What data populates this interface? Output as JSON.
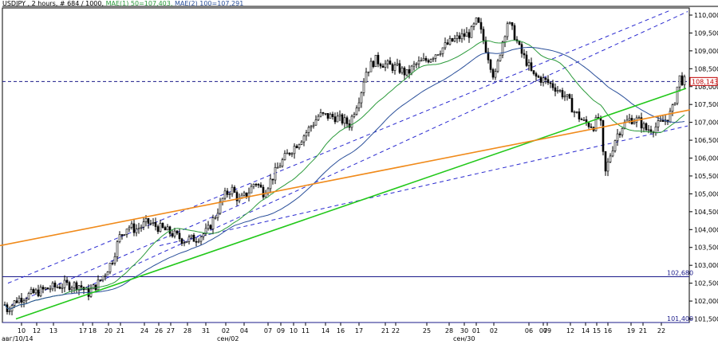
{
  "header": {
    "symbol_info": "USDJPY , 2 hours, # 684 / 1000,",
    "ma1_label": "MAE(1) 50=107,403,",
    "ma2_label": "MAE(2) 100=107,291"
  },
  "colors": {
    "background": "#ffffff",
    "grid": "#c8c8c8",
    "candle": "#000000",
    "ma1": "#2a9a3a",
    "ma2": "#2a4f9a",
    "channel": "#2a2ad0",
    "trend_green": "#22c81a",
    "trend_orange": "#f08a1a",
    "level_line": "#1a1a8a",
    "last_price_box": "#c00000"
  },
  "chart_data": {
    "type": "candlestick",
    "title": "USDJPY , 2 hours, # 684 / 1000,",
    "ylim": [
      101.4,
      110.2
    ],
    "y_tick_labels": [
      "110,000",
      "109,500",
      "109,000",
      "108,500",
      "108,000",
      "107,500",
      "107,000",
      "106,500",
      "106,000",
      "105,500",
      "105,000",
      "104,500",
      "104,000",
      "103,500",
      "103,000",
      "102,500",
      "102,000",
      "101,500"
    ],
    "y_tick_values": [
      110.0,
      109.5,
      109.0,
      108.5,
      108.0,
      107.5,
      107.0,
      106.5,
      106.0,
      105.5,
      105.0,
      104.5,
      104.0,
      103.5,
      103.0,
      102.5,
      102.0,
      101.5
    ],
    "x_tick_labels": [
      "10",
      "12",
      "13",
      "17",
      "18",
      "20",
      "21",
      "24",
      "26",
      "27",
      "28",
      "31",
      "02",
      "04",
      "07",
      "09",
      "10",
      "11",
      "14",
      "16",
      "17",
      "21",
      "22",
      "25",
      "28",
      "30",
      "01",
      "02",
      "06",
      "07",
      "09",
      "12",
      "14",
      "15",
      "16",
      "19",
      "21",
      "22"
    ],
    "x_month_labels": [
      "авг/10/14",
      "сен/02",
      "сен/30"
    ],
    "last_price": 108.143,
    "last_price_label": "108,143",
    "horizontal_levels": [
      {
        "value": 102.68,
        "label": "102,680"
      },
      {
        "value": 101.4,
        "label": "101,400"
      }
    ],
    "path_points": [
      [
        0,
        102.35
      ],
      [
        8,
        101.75
      ],
      [
        22,
        102.05
      ],
      [
        40,
        102.2
      ],
      [
        60,
        102.35
      ],
      [
        80,
        102.45
      ],
      [
        100,
        102.45
      ],
      [
        110,
        102.2
      ],
      [
        125,
        102.55
      ],
      [
        140,
        103.1
      ],
      [
        150,
        103.8
      ],
      [
        160,
        104.1
      ],
      [
        170,
        104.0
      ],
      [
        185,
        104.2
      ],
      [
        200,
        104.05
      ],
      [
        215,
        103.9
      ],
      [
        230,
        103.7
      ],
      [
        245,
        103.75
      ],
      [
        260,
        103.95
      ],
      [
        270,
        104.4
      ],
      [
        280,
        104.9
      ],
      [
        290,
        105.15
      ],
      [
        300,
        104.8
      ],
      [
        310,
        105.0
      ],
      [
        320,
        105.35
      ],
      [
        330,
        105.05
      ],
      [
        340,
        105.4
      ],
      [
        350,
        105.8
      ],
      [
        362,
        106.15
      ],
      [
        372,
        106.4
      ],
      [
        385,
        106.75
      ],
      [
        400,
        107.2
      ],
      [
        420,
        107.15
      ],
      [
        438,
        106.95
      ],
      [
        445,
        107.4
      ],
      [
        452,
        107.8
      ],
      [
        458,
        108.4
      ],
      [
        470,
        108.75
      ],
      [
        485,
        108.6
      ],
      [
        500,
        108.5
      ],
      [
        510,
        108.35
      ],
      [
        520,
        108.6
      ],
      [
        535,
        108.75
      ],
      [
        550,
        109.0
      ],
      [
        565,
        109.25
      ],
      [
        578,
        109.4
      ],
      [
        590,
        109.5
      ],
      [
        598,
        109.85
      ],
      [
        606,
        109.3
      ],
      [
        614,
        108.7
      ],
      [
        620,
        108.2
      ],
      [
        628,
        109.1
      ],
      [
        636,
        109.8
      ],
      [
        644,
        109.5
      ],
      [
        652,
        109.0
      ],
      [
        660,
        108.7
      ],
      [
        668,
        108.3
      ],
      [
        680,
        108.2
      ],
      [
        695,
        108.0
      ],
      [
        710,
        107.7
      ],
      [
        720,
        107.3
      ],
      [
        732,
        107.0
      ],
      [
        744,
        106.9
      ],
      [
        752,
        107.2
      ],
      [
        758,
        105.5
      ],
      [
        765,
        106.1
      ],
      [
        772,
        106.6
      ],
      [
        780,
        106.9
      ],
      [
        790,
        107.1
      ],
      [
        800,
        107.05
      ],
      [
        810,
        106.8
      ],
      [
        820,
        106.85
      ],
      [
        830,
        107.0
      ],
      [
        838,
        107.15
      ],
      [
        844,
        107.4
      ],
      [
        848,
        107.9
      ],
      [
        852,
        108.25
      ],
      [
        856,
        108.15
      ],
      [
        860,
        108.14
      ]
    ],
    "trendlines": {
      "green": {
        "from": [
          20,
          101.5
        ],
        "to": [
          860,
          107.95
        ]
      },
      "orange": {
        "from": [
          0,
          103.55
        ],
        "to": [
          865,
          107.35
        ]
      },
      "channel_upper": {
        "from": [
          10,
          102.5
        ],
        "to": [
          842,
          110.15
        ]
      },
      "channel_mid": {
        "from": [
          100,
          102.3
        ],
        "to": [
          862,
          110.1
        ]
      },
      "channel_lower_a": {
        "from": [
          15,
          101.9
        ],
        "to": [
          312,
          104.8
        ]
      },
      "channel_lower_b": {
        "from": [
          200,
          103.55
        ],
        "to": [
          862,
          106.9
        ]
      }
    }
  }
}
